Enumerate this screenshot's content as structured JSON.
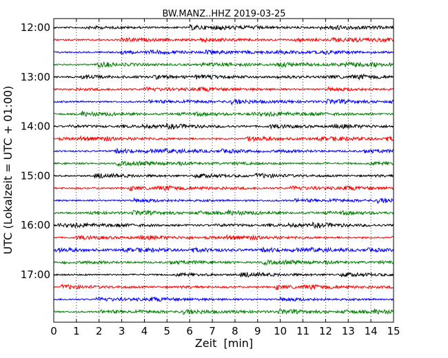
{
  "chart_data": {
    "type": "line",
    "title": "BW.MANZ..HHZ 2019-03-25",
    "xlabel": "Zeit  [min]",
    "ylabel": "UTC (Lokalzeit = UTC + 01:00)",
    "xlim": [
      0,
      15
    ],
    "x_ticks": [
      "0",
      "1",
      "2",
      "3",
      "4",
      "5",
      "6",
      "7",
      "8",
      "9",
      "10",
      "11",
      "12",
      "13",
      "14",
      "15"
    ],
    "y_ticks": [
      {
        "label": "12:00",
        "row": 0
      },
      {
        "label": "13:00",
        "row": 4
      },
      {
        "label": "14:00",
        "row": 8
      },
      {
        "label": "15:00",
        "row": 12
      },
      {
        "label": "16:00",
        "row": 16
      },
      {
        "label": "17:00",
        "row": 20
      }
    ],
    "trace_interval_min": 15,
    "trace_count": 24,
    "trace_colors": [
      "#000000",
      "#ff0000",
      "#0000ff",
      "#008000"
    ],
    "grid": "vertical dotted",
    "legend": "none"
  }
}
